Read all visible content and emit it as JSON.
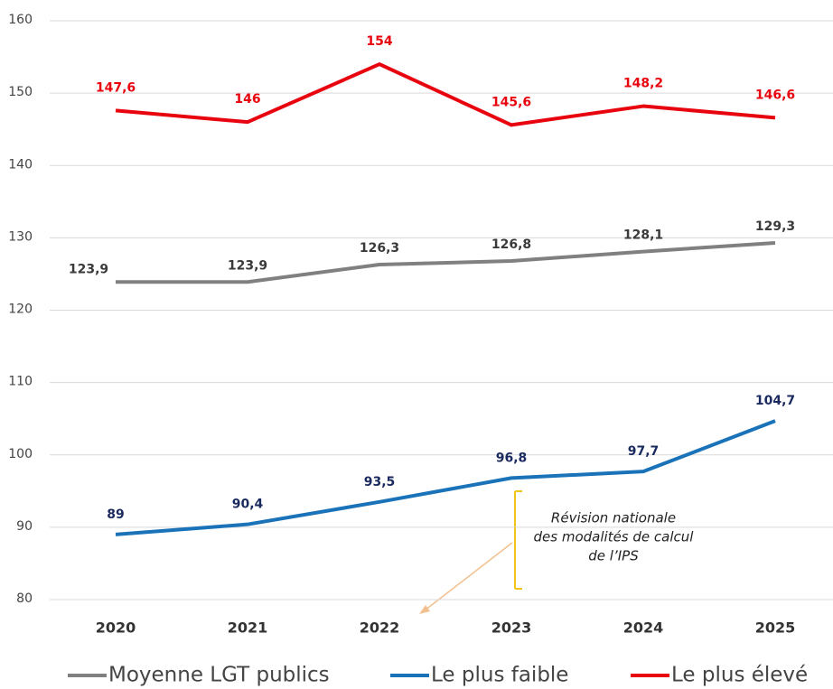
{
  "chart_data": {
    "type": "line",
    "categories": [
      "2020",
      "2021",
      "2022",
      "2023",
      "2024",
      "2025"
    ],
    "series": [
      {
        "name": "Moyenne LGT publics",
        "color": "#808080",
        "label_color": "#3a3a3a",
        "values": [
          123.9,
          123.9,
          126.3,
          126.8,
          128.1,
          129.3
        ],
        "value_labels": [
          "123,9",
          "123,9",
          "126,3",
          "126,8",
          "128,1",
          "129,3"
        ]
      },
      {
        "name": "Le plus faible",
        "color": "#1a73b8",
        "label_color": "#1b2a5e",
        "values": [
          89,
          90.4,
          93.5,
          96.8,
          97.7,
          104.7
        ],
        "value_labels": [
          "89",
          "90,4",
          "93,5",
          "96,8",
          "97,7",
          "104,7"
        ]
      },
      {
        "name": "Le plus élevé",
        "color": "#e8040f",
        "label_color": "#e8040f",
        "values": [
          147.6,
          146,
          154,
          145.6,
          148.2,
          146.6
        ],
        "value_labels": [
          "147,6",
          "146",
          "154",
          "145,6",
          "148,2",
          "146,6"
        ]
      }
    ],
    "ylim": [
      80,
      160
    ],
    "yticks": [
      80,
      90,
      100,
      110,
      120,
      130,
      140,
      150,
      160
    ],
    "grid": true,
    "legend": "bottom",
    "annotation": [
      "Révision nationale",
      "des modalités de calcul",
      "de l’IPS"
    ]
  }
}
